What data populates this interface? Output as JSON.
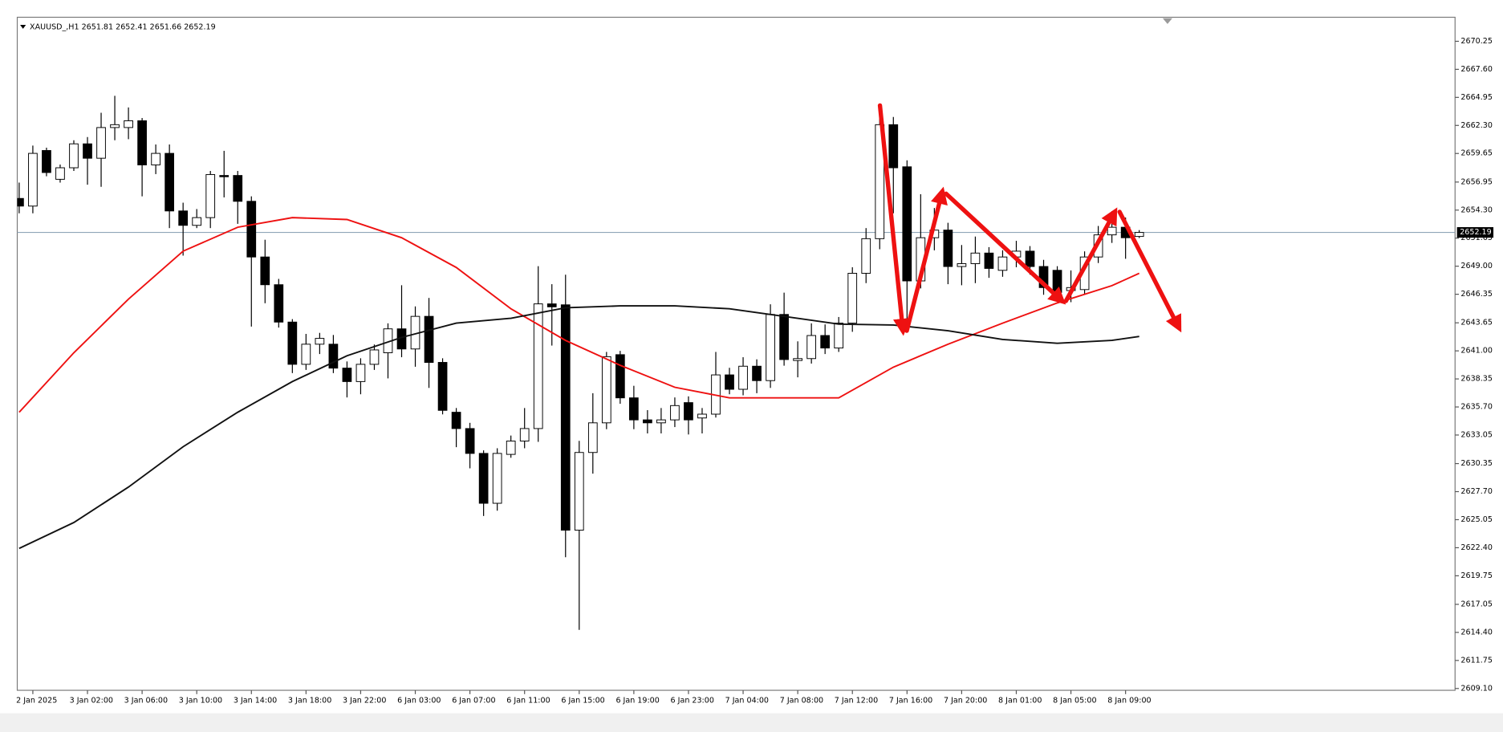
{
  "chart_data": {
    "type": "candlestick",
    "symbol": "XAUUSD_,H1",
    "categories": [
      null,
      "2 Jan 2025",
      null,
      null,
      null,
      "3 Jan 02:00",
      null,
      null,
      null,
      "3 Jan 06:00",
      null,
      null,
      null,
      "3 Jan 10:00",
      null,
      null,
      null,
      "3 Jan 14:00",
      null,
      null,
      null,
      "3 Jan 18:00",
      null,
      null,
      null,
      "3 Jan 22:00",
      null,
      null,
      null,
      "6 Jan 03:00",
      null,
      null,
      null,
      "6 Jan 07:00",
      null,
      null,
      null,
      "6 Jan 11:00",
      null,
      null,
      null,
      "6 Jan 15:00",
      null,
      null,
      null,
      "6 Jan 19:00",
      null,
      null,
      null,
      "6 Jan 23:00",
      null,
      null,
      null,
      "7 Jan 04:00",
      null,
      null,
      null,
      "7 Jan 08:00",
      null,
      null,
      null,
      "7 Jan 12:00",
      null,
      null,
      null,
      "7 Jan 16:00",
      null,
      null,
      null,
      "7 Jan 20:00",
      null,
      null,
      null,
      "8 Jan 01:00",
      null,
      null,
      null,
      "8 Jan 05:00",
      null,
      null,
      null,
      "8 Jan 09:00",
      null
    ],
    "open": [
      2655.4,
      2654.68,
      2659.93,
      2657.21,
      2658.3,
      2660.56,
      2659.2,
      2662.1,
      2662.1,
      2662.74,
      2658.57,
      2659.66,
      2654.22,
      2652.86,
      2653.59,
      2657.57,
      2657.57,
      2655.13,
      2649.87,
      2647.25,
      2643.72,
      2639.73,
      2641.63,
      2641.63,
      2639.37,
      2638.1,
      2639.73,
      2640.82,
      2643.08,
      2641.18,
      2644.26,
      2639.91,
      2635.2,
      2633.66,
      2631.31,
      2626.6,
      2631.22,
      2632.48,
      2633.66,
      2645.44,
      2645.35,
      2624.06,
      2631.4,
      2634.2,
      2640.64,
      2636.56,
      2634.48,
      2634.2,
      2634.48,
      2636.11,
      2634.66,
      2635.02,
      2638.73,
      2637.37,
      2639.55,
      2638.19,
      2644.44,
      2640.09,
      2640.27,
      2642.45,
      2641.27,
      2643.62,
      2648.33,
      2651.6,
      2662.37,
      2658.39,
      2647.61,
      2651.69,
      2652.41,
      2648.97,
      2649.24,
      2650.24,
      2648.61,
      2649.87,
      2650.42,
      2648.97,
      2648.61,
      2646.7,
      2646.79,
      2649.87,
      2651.96,
      2652.68,
      2651.81
    ],
    "high": [
      2656.9,
      2660.4,
      2660.2,
      2658.6,
      2660.9,
      2661.2,
      2663.5,
      2665.1,
      2664.0,
      2663.0,
      2660.5,
      2660.5,
      2655.0,
      2654.4,
      2658.0,
      2659.9,
      2658.0,
      2655.6,
      2651.5,
      2647.8,
      2644.0,
      2642.6,
      2642.7,
      2642.5,
      2640.0,
      2640.3,
      2641.6,
      2643.6,
      2647.2,
      2645.2,
      2646.0,
      2640.3,
      2635.6,
      2634.2,
      2631.6,
      2631.8,
      2633.0,
      2635.6,
      2649.0,
      2647.3,
      2648.2,
      2632.5,
      2637.0,
      2640.9,
      2641.0,
      2637.7,
      2635.4,
      2635.6,
      2636.6,
      2636.7,
      2635.6,
      2640.9,
      2639.4,
      2640.4,
      2640.2,
      2645.4,
      2646.5,
      2641.9,
      2643.6,
      2643.5,
      2644.2,
      2648.9,
      2652.6,
      2663.0,
      2663.1,
      2659.0,
      2655.8,
      2654.5,
      2653.1,
      2651.0,
      2651.8,
      2650.8,
      2650.5,
      2651.4,
      2650.9,
      2649.6,
      2649.0,
      2648.6,
      2650.4,
      2652.8,
      2654.2,
      2653.6,
      2652.41
    ],
    "low": [
      2654.0,
      2654.0,
      2657.5,
      2656.9,
      2658.0,
      2656.7,
      2656.5,
      2660.9,
      2661.0,
      2655.6,
      2657.7,
      2652.6,
      2650.0,
      2652.6,
      2652.6,
      2655.5,
      2653.0,
      2643.3,
      2645.5,
      2643.2,
      2638.9,
      2639.2,
      2640.7,
      2638.9,
      2636.6,
      2636.9,
      2639.2,
      2638.4,
      2640.4,
      2639.5,
      2637.5,
      2635.0,
      2631.9,
      2629.9,
      2625.4,
      2625.9,
      2630.9,
      2631.8,
      2632.4,
      2641.5,
      2621.5,
      2614.64,
      2629.4,
      2633.6,
      2636.0,
      2633.6,
      2633.2,
      2633.2,
      2633.8,
      2633.1,
      2633.2,
      2634.7,
      2636.9,
      2636.8,
      2637.0,
      2637.5,
      2639.6,
      2638.5,
      2639.8,
      2640.7,
      2640.9,
      2642.8,
      2647.4,
      2650.6,
      2654.0,
      2642.8,
      2646.9,
      2650.5,
      2647.3,
      2647.2,
      2647.4,
      2647.9,
      2648.0,
      2648.9,
      2648.2,
      2646.3,
      2645.7,
      2645.6,
      2646.3,
      2649.3,
      2651.2,
      2649.7,
      2651.66
    ],
    "close": [
      2654.68,
      2659.66,
      2657.85,
      2658.3,
      2660.56,
      2659.2,
      2662.1,
      2662.37,
      2662.74,
      2658.57,
      2659.66,
      2654.22,
      2652.86,
      2653.59,
      2657.66,
      2657.45,
      2655.13,
      2649.87,
      2647.25,
      2643.72,
      2639.73,
      2641.63,
      2642.18,
      2639.37,
      2638.1,
      2639.73,
      2641.09,
      2643.08,
      2641.18,
      2644.26,
      2639.91,
      2635.38,
      2633.66,
      2631.31,
      2626.6,
      2631.31,
      2632.48,
      2633.66,
      2645.44,
      2645.16,
      2624.06,
      2631.4,
      2634.2,
      2640.45,
      2636.56,
      2634.48,
      2634.2,
      2634.48,
      2635.83,
      2634.48,
      2635.02,
      2638.73,
      2637.37,
      2639.55,
      2638.19,
      2644.44,
      2640.18,
      2640.27,
      2642.45,
      2641.27,
      2643.62,
      2648.33,
      2651.6,
      2662.37,
      2658.3,
      2647.61,
      2651.69,
      2652.41,
      2648.97,
      2649.24,
      2650.24,
      2648.79,
      2649.87,
      2650.42,
      2648.97,
      2646.98,
      2646.52,
      2646.98,
      2649.87,
      2651.96,
      2652.68,
      2651.69,
      2652.19
    ],
    "up_color": "#ffffff",
    "down_color": "#000000",
    "wick_color": "#000000",
    "moving_averages": [
      {
        "color": "#ee1111",
        "x": [
          0,
          4,
          8,
          12,
          16,
          20,
          24,
          28,
          32,
          36,
          40,
          44,
          48,
          52,
          56,
          60,
          64,
          68,
          72,
          76,
          80,
          82
        ],
        "values": [
          2635.2,
          2640.82,
          2645.89,
          2650.42,
          2652.68,
          2653.59,
          2653.41,
          2651.69,
          2648.88,
          2644.98,
          2641.99,
          2639.64,
          2637.56,
          2636.56,
          2636.56,
          2636.56,
          2639.46,
          2641.63,
          2643.62,
          2645.53,
          2647.16,
          2648.33
        ]
      },
      {
        "color": "#111111",
        "x": [
          0,
          4,
          8,
          12,
          16,
          20,
          24,
          28,
          32,
          36,
          40,
          44,
          48,
          52,
          56,
          60,
          64,
          68,
          72,
          76,
          80,
          82
        ],
        "values": [
          2622.34,
          2624.78,
          2628.13,
          2631.94,
          2635.2,
          2638.1,
          2640.54,
          2642.27,
          2643.62,
          2644.08,
          2645.07,
          2645.25,
          2645.25,
          2644.98,
          2644.26,
          2643.53,
          2643.44,
          2642.9,
          2642.08,
          2641.72,
          2641.99,
          2642.36
        ]
      }
    ],
    "ylim": [
      2608.93,
      2672.52
    ],
    "yticks": [
      2670.25,
      {
        "value": 2667.6,
        "label": "2667.60"
      },
      2664.95,
      {
        "value": 2662.3,
        "label": "2662.30"
      },
      2659.65,
      2656.95,
      {
        "value": 2654.3,
        "label": "2654.30"
      },
      2651.65,
      {
        "value": 2649.0,
        "label": "2649.00"
      },
      2646.35,
      2643.65,
      {
        "value": 2641.0,
        "label": "2641.00"
      },
      2638.35,
      {
        "value": 2635.7,
        "label": "2635.70"
      },
      2633.05,
      2630.35,
      {
        "value": 2627.7,
        "label": "2627.70"
      },
      2625.05,
      {
        "value": 2622.4,
        "label": "2622.40"
      },
      2619.75,
      2617.05,
      {
        "value": 2614.4,
        "label": "2614.40"
      },
      2611.75,
      {
        "value": 2609.1,
        "label": "2609.10"
      }
    ],
    "price_line_color": "#8fa6b8",
    "grid": false
  }
}
